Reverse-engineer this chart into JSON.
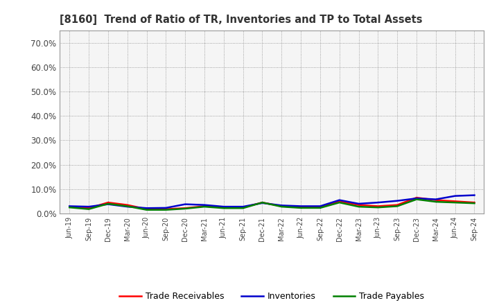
{
  "title": "[8160]  Trend of Ratio of TR, Inventories and TP to Total Assets",
  "x_labels": [
    "Jun-19",
    "Sep-19",
    "Dec-19",
    "Mar-20",
    "Jun-20",
    "Sep-20",
    "Dec-20",
    "Mar-21",
    "Jun-21",
    "Sep-21",
    "Dec-21",
    "Mar-22",
    "Jun-22",
    "Sep-22",
    "Dec-22",
    "Mar-23",
    "Jun-23",
    "Sep-23",
    "Dec-23",
    "Mar-24",
    "Jun-24",
    "Sep-24"
  ],
  "trade_receivables": [
    2.8,
    2.2,
    4.5,
    3.5,
    1.8,
    1.8,
    2.2,
    3.0,
    2.5,
    2.5,
    4.5,
    3.0,
    2.5,
    2.5,
    5.0,
    3.5,
    3.0,
    3.5,
    6.5,
    5.5,
    5.0,
    4.5
  ],
  "inventories": [
    3.0,
    2.8,
    3.8,
    2.8,
    2.2,
    2.3,
    3.8,
    3.5,
    2.8,
    2.8,
    4.3,
    3.3,
    3.0,
    3.0,
    5.5,
    4.0,
    4.5,
    5.2,
    6.2,
    5.8,
    7.2,
    7.5
  ],
  "trade_payables": [
    2.5,
    1.8,
    4.0,
    3.0,
    1.5,
    1.5,
    2.0,
    2.8,
    2.2,
    2.2,
    4.5,
    2.8,
    2.3,
    2.3,
    4.5,
    2.8,
    2.5,
    3.0,
    5.8,
    4.8,
    4.5,
    4.2
  ],
  "color_tr": "#ff0000",
  "color_inv": "#0000cc",
  "color_tp": "#008000",
  "ylim": [
    0,
    75
  ],
  "yticks": [
    0,
    10,
    20,
    30,
    40,
    50,
    60,
    70
  ],
  "ytick_labels": [
    "0.0%",
    "10.0%",
    "20.0%",
    "30.0%",
    "40.0%",
    "50.0%",
    "60.0%",
    "70.0%"
  ],
  "legend_tr": "Trade Receivables",
  "legend_inv": "Inventories",
  "legend_tp": "Trade Payables",
  "bg_color": "#ffffff",
  "plot_bg_color": "#f5f5f5",
  "grid_color": "#888888",
  "line_width": 1.8
}
